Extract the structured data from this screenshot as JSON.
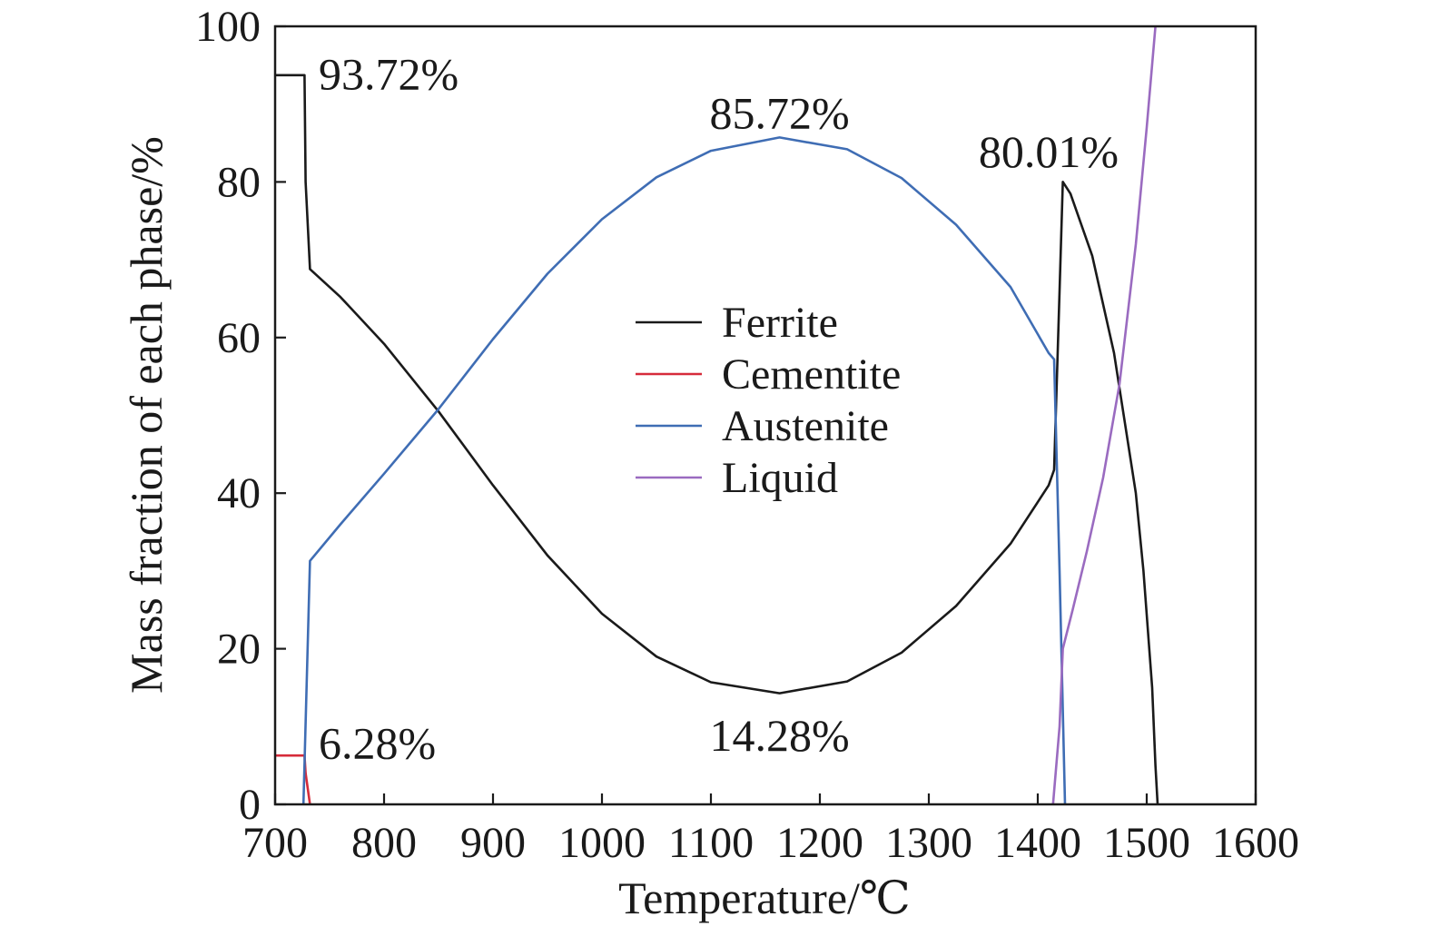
{
  "chart_data": {
    "type": "line",
    "xlabel": "Temperature/℃",
    "ylabel": "Mass fraction of each phase/%",
    "xlim": [
      700,
      1600
    ],
    "ylim": [
      0,
      100
    ],
    "xticks": [
      "700",
      "800",
      "900",
      "1000",
      "1100",
      "1200",
      "1300",
      "1400",
      "1500",
      "1600"
    ],
    "yticks": [
      "0",
      "20",
      "40",
      "60",
      "80",
      "100"
    ],
    "grid": false,
    "legend_position": "center",
    "series": [
      {
        "name": "Ferrite",
        "color": "#1a1a1a",
        "points": [
          [
            700,
            93.72
          ],
          [
            727,
            93.72
          ],
          [
            728,
            80
          ],
          [
            732,
            68.8
          ],
          [
            760,
            65.2
          ],
          [
            800,
            59.2
          ],
          [
            850,
            50.5
          ],
          [
            900,
            41
          ],
          [
            950,
            32
          ],
          [
            1000,
            24.5
          ],
          [
            1050,
            19
          ],
          [
            1100,
            15.7
          ],
          [
            1163,
            14.28
          ],
          [
            1225,
            15.8
          ],
          [
            1275,
            19.5
          ],
          [
            1325,
            25.5
          ],
          [
            1375,
            33.5
          ],
          [
            1410,
            41
          ],
          [
            1415,
            43
          ],
          [
            1420,
            66
          ],
          [
            1423,
            80.01
          ],
          [
            1430,
            78.5
          ],
          [
            1450,
            70.5
          ],
          [
            1470,
            58
          ],
          [
            1490,
            40
          ],
          [
            1497,
            30
          ],
          [
            1505,
            15
          ],
          [
            1508,
            5
          ],
          [
            1510,
            0
          ]
        ]
      },
      {
        "name": "Cementite",
        "color": "#d62b3a",
        "points": [
          [
            700,
            6.28
          ],
          [
            727,
            6.28
          ],
          [
            728,
            4
          ],
          [
            732,
            0
          ]
        ]
      },
      {
        "name": "Austenite",
        "color": "#3f6db4",
        "points": [
          [
            726,
            0
          ],
          [
            732,
            31.3
          ],
          [
            760,
            36
          ],
          [
            800,
            42.5
          ],
          [
            850,
            50.8
          ],
          [
            900,
            59.8
          ],
          [
            950,
            68.2
          ],
          [
            1000,
            75.2
          ],
          [
            1050,
            80.6
          ],
          [
            1100,
            84
          ],
          [
            1163,
            85.72
          ],
          [
            1225,
            84.2
          ],
          [
            1275,
            80.5
          ],
          [
            1325,
            74.5
          ],
          [
            1375,
            66.5
          ],
          [
            1410,
            58
          ],
          [
            1415,
            57.2
          ],
          [
            1420,
            30
          ],
          [
            1425,
            0
          ]
        ]
      },
      {
        "name": "Liquid",
        "color": "#9a6bc0",
        "points": [
          [
            1414,
            0
          ],
          [
            1420,
            10
          ],
          [
            1423,
            20
          ],
          [
            1432,
            25
          ],
          [
            1445,
            32.5
          ],
          [
            1460,
            42
          ],
          [
            1475,
            54
          ],
          [
            1490,
            72
          ],
          [
            1500,
            87
          ],
          [
            1508,
            100
          ]
        ]
      }
    ],
    "annotations": [
      {
        "text": "93.72%",
        "x": 740,
        "y": 94
      },
      {
        "text": "85.72%",
        "x": 1163,
        "y": 89
      },
      {
        "text": "80.01%",
        "x": 1410,
        "y": 84
      },
      {
        "text": "14.28%",
        "x": 1163,
        "y": 9
      },
      {
        "text": "6.28%",
        "x": 740,
        "y": 8
      }
    ]
  }
}
